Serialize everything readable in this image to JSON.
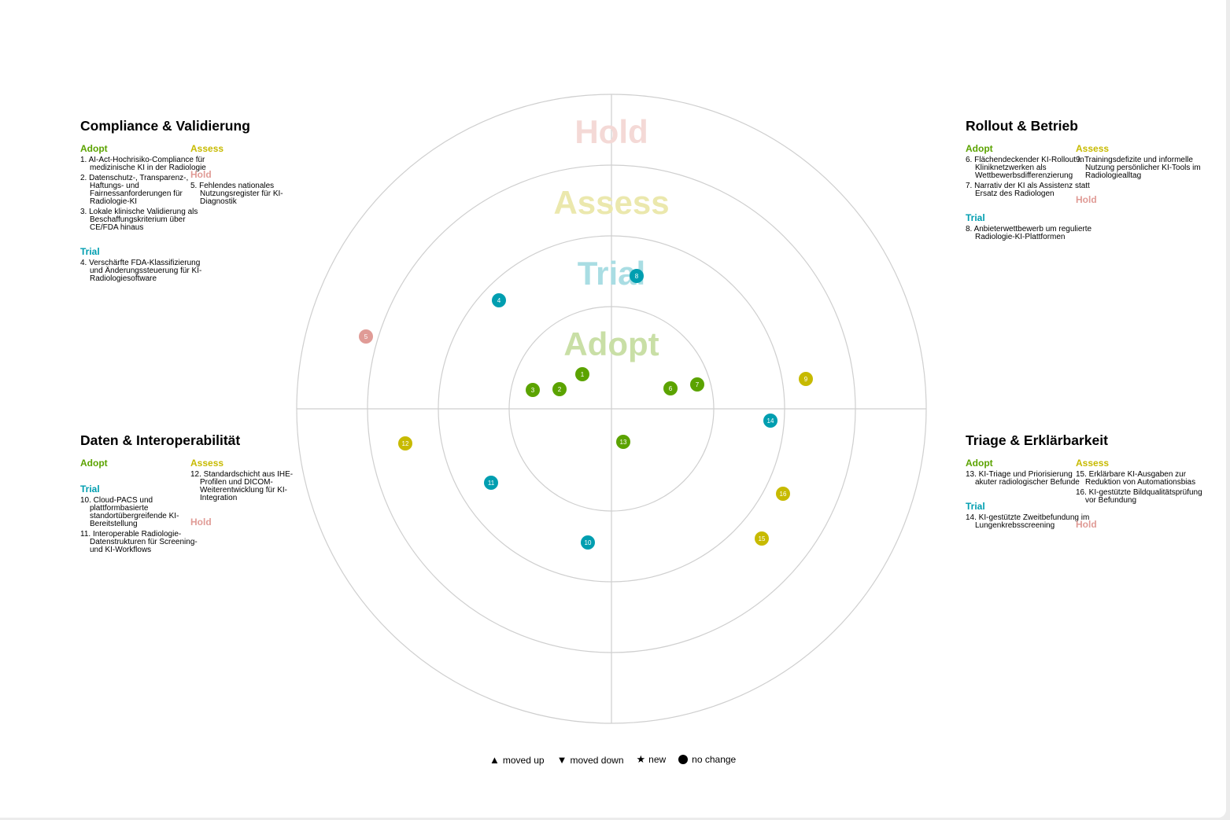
{
  "rings": [
    {
      "name": "Adopt",
      "color": "#5ba300"
    },
    {
      "name": "Trial",
      "color": "#009eb0"
    },
    {
      "name": "Assess",
      "color": "#c7ba00"
    },
    {
      "name": "Hold",
      "color": "#e09b96"
    }
  ],
  "quadrants": {
    "tl": {
      "title": "Compliance & Validierung",
      "col1": [
        {
          "ring": "Adopt",
          "items": [
            "1. AI-Act-Hochrisiko-Compliance für medizinische KI in der Radiologie",
            "2. Datenschutz-, Transparenz-, Haftungs- und Fairnessanforderungen für Radiologie-KI",
            "3. Lokale klinische Validierung als Beschaffungskriterium über CE/FDA hinaus"
          ]
        },
        {
          "ring": "Trial",
          "items": [
            "4. Verschärfte FDA-Klassifizierung und Änderungssteuerung für KI-Radiologiesoftware"
          ]
        }
      ],
      "col2": [
        {
          "ring": "Assess",
          "items": []
        },
        {
          "ring": "Hold",
          "items": [
            "5. Fehlendes nationales Nutzungsregister für KI-Diagnostik"
          ]
        }
      ]
    },
    "tr": {
      "title": "Rollout & Betrieb",
      "col1": [
        {
          "ring": "Adopt",
          "items": [
            "6. Flächendeckender KI-Rollout in Kliniknetzwerken als Wettbewerbsdifferenzierung",
            "7. Narrativ der KI als Assistenz statt Ersatz des Radiologen"
          ]
        },
        {
          "ring": "Trial",
          "items": [
            "8. Anbieterwettbewerb um regulierte Radiologie-KI-Plattformen"
          ]
        }
      ],
      "col2": [
        {
          "ring": "Assess",
          "items": [
            "9. Trainingsdefizite und informelle Nutzung persönlicher KI-Tools im Radiologiealltag"
          ]
        },
        {
          "ring": "Hold",
          "items": []
        }
      ]
    },
    "bl": {
      "title": "Daten & Interoperabilität",
      "col1": [
        {
          "ring": "Adopt",
          "items": []
        },
        {
          "ring": "Trial",
          "items": [
            "10. Cloud-PACS und plattformbasierte standortübergreifende KI-Bereitstellung",
            "11. Interoperable Radiologie-Datenstrukturen für Screening- und KI-Workflows"
          ]
        }
      ],
      "col2": [
        {
          "ring": "Assess",
          "items": [
            "12. Standardschicht aus IHE-Profilen und DICOM-Weiterentwicklung für KI-Integration"
          ]
        },
        {
          "ring": "Hold",
          "items": []
        }
      ]
    },
    "br": {
      "title": "Triage & Erklärbarkeit",
      "col1": [
        {
          "ring": "Adopt",
          "items": [
            "13. KI-Triage und Priorisierung akuter radiologischer Befunde"
          ]
        },
        {
          "ring": "Trial",
          "items": [
            "14. KI-gestützte Zweitbefundung im Lungenkrebsscreening"
          ]
        }
      ],
      "col2": [
        {
          "ring": "Assess",
          "items": [
            "15. Erklärbare KI-Ausgaben zur Reduktion von Automationsbias",
            "16. KI-gestützte Bildqualitätsprüfung vor Befundung"
          ]
        },
        {
          "ring": "Hold",
          "items": []
        }
      ]
    }
  },
  "blips": [
    {
      "id": "1",
      "ring": "Adopt",
      "quadrant": "Compliance & Validierung",
      "status": "no change"
    },
    {
      "id": "2",
      "ring": "Adopt",
      "quadrant": "Compliance & Validierung",
      "status": "no change"
    },
    {
      "id": "3",
      "ring": "Adopt",
      "quadrant": "Compliance & Validierung",
      "status": "no change"
    },
    {
      "id": "4",
      "ring": "Trial",
      "quadrant": "Compliance & Validierung",
      "status": "no change"
    },
    {
      "id": "5",
      "ring": "Hold",
      "quadrant": "Compliance & Validierung",
      "status": "no change"
    },
    {
      "id": "6",
      "ring": "Adopt",
      "quadrant": "Rollout & Betrieb",
      "status": "no change"
    },
    {
      "id": "7",
      "ring": "Adopt",
      "quadrant": "Rollout & Betrieb",
      "status": "no change"
    },
    {
      "id": "8",
      "ring": "Trial",
      "quadrant": "Rollout & Betrieb",
      "status": "no change"
    },
    {
      "id": "9",
      "ring": "Assess",
      "quadrant": "Rollout & Betrieb",
      "status": "no change"
    },
    {
      "id": "10",
      "ring": "Trial",
      "quadrant": "Daten & Interoperabilität",
      "status": "no change"
    },
    {
      "id": "11",
      "ring": "Trial",
      "quadrant": "Daten & Interoperabilität",
      "status": "no change"
    },
    {
      "id": "12",
      "ring": "Assess",
      "quadrant": "Daten & Interoperabilität",
      "status": "no change"
    },
    {
      "id": "13",
      "ring": "Adopt",
      "quadrant": "Triage & Erklärbarkeit",
      "status": "no change"
    },
    {
      "id": "14",
      "ring": "Trial",
      "quadrant": "Triage & Erklärbarkeit",
      "status": "no change"
    },
    {
      "id": "15",
      "ring": "Assess",
      "quadrant": "Triage & Erklärbarkeit",
      "status": "no change"
    },
    {
      "id": "16",
      "ring": "Assess",
      "quadrant": "Triage & Erklärbarkeit",
      "status": "no change"
    }
  ],
  "legend": {
    "moved_up_icon": "triangle-up-icon",
    "moved_up": "moved up",
    "moved_down_icon": "triangle-down-icon",
    "moved_down": "moved down",
    "new_icon": "star-icon",
    "new": "new",
    "no_change_icon": "circle-icon",
    "no_change": "no change"
  }
}
